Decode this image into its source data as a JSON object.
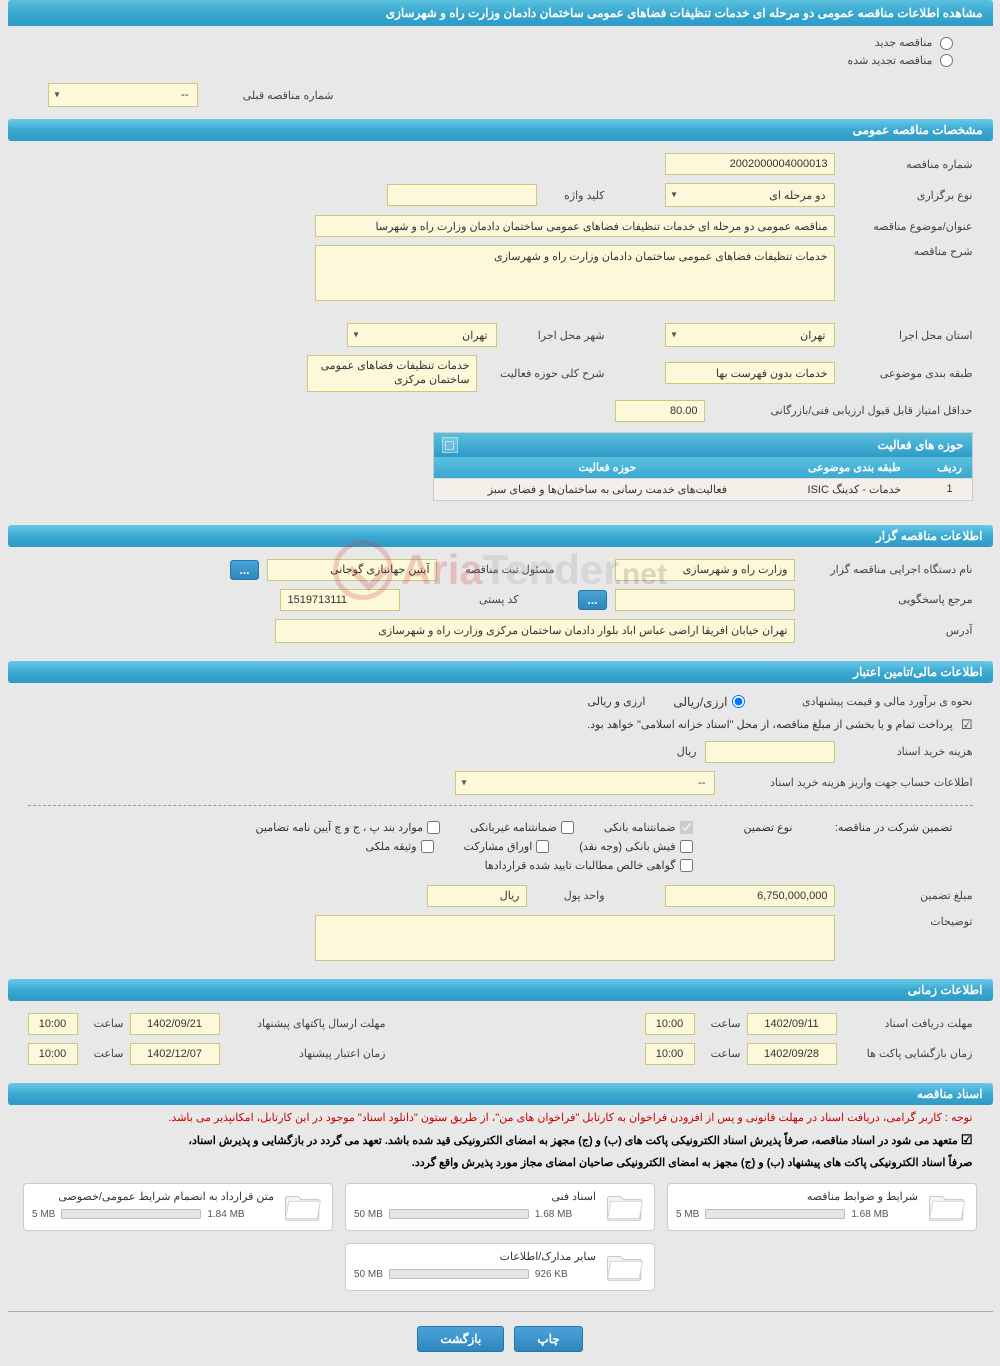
{
  "watermark": {
    "part1": "Aria",
    "part2": "Tender",
    "part3": ".net"
  },
  "page_title": "مشاهده اطلاعات مناقصه عمومی دو مرحله ای خدمات تنظیفات فضاهای عمومی ساختمان دادمان وزارت راه و شهرسازی",
  "radios": {
    "new_tender": "مناقصه جدید",
    "renewed_tender": "مناقصه تجدید شده"
  },
  "prev_number": {
    "label": "شماره مناقصه قبلی",
    "value": "--"
  },
  "sections": {
    "general": "مشخصات مناقصه عمومی",
    "organizer": "اطلاعات مناقصه گزار",
    "financial": "اطلاعات مالی/تامین اعتبار",
    "time": "اطلاعات زمانی",
    "docs": "اسناد مناقصه"
  },
  "general": {
    "tender_number": {
      "label": "شماره مناقصه",
      "value": "2002000004000013"
    },
    "hold_type": {
      "label": "نوع برگزاری",
      "value": "دو مرحله ای"
    },
    "keyword": {
      "label": "کلید واژه",
      "value": ""
    },
    "subject": {
      "label": "عنوان/موضوع مناقصه",
      "value": "مناقصه عمومی دو مرحله ای خدمات تنظیفات فضاهای عمومی ساختمان دادمان  وزارت راه و شهرسا"
    },
    "description": {
      "label": "شرح مناقصه",
      "value": "خدمات تنظیفات فضاهای عمومی ساختمان دادمان  وزارت راه و شهرسازی"
    },
    "province": {
      "label": "استان محل اجرا",
      "value": "تهران"
    },
    "city": {
      "label": "شهر محل اجرا",
      "value": "تهران"
    },
    "subject_class": {
      "label": "طبقه بندی موضوعی",
      "value": "خدمات بدون فهرست بها"
    },
    "activity_summary": {
      "label": "شرح کلی حوزه فعالیت",
      "value": "خدمات تنظیفات فضاهای عمومی ساختمان مرکزی"
    },
    "min_score": {
      "label": "حداقل امتیاز قابل قبول ارزیابی فنی/بازرگانی",
      "value": "80.00"
    }
  },
  "activity_table": {
    "title": "حوزه های فعالیت",
    "columns": {
      "idx": "ردیف",
      "class": "طبقه بندی موضوعی",
      "field": "حوزه فعالیت"
    },
    "rows": [
      {
        "idx": "1",
        "class": "خدمات - کدینگ ISIC",
        "field": "فعالیت‌های خدمت رسانی به ساختمان‌ها و فضای سبز"
      }
    ]
  },
  "organizer": {
    "org_name": {
      "label": "نام دستگاه اجرایی مناقصه گزار",
      "value": "وزارت راه و شهرسازی"
    },
    "registrar": {
      "label": "مسئول ثبت مناقصه",
      "value": "آیتین جهانبازی گوجانی"
    },
    "responder": {
      "label": "مرجع پاسخگویی",
      "value": ""
    },
    "postal": {
      "label": "کد پستی",
      "value": "1519713111"
    },
    "address": {
      "label": "آدرس",
      "value": "تهران خیابان افریقا اراضی عباس اباد بلوار دادمان  ساختمان مرکزی وزارت راه و شهرسازی"
    }
  },
  "financial": {
    "estimate_type": {
      "label": "نحوه ی برآورد مالی و قیمت پیشنهادی",
      "option": "ارزی/ریالی",
      "option_label": "ارزی و ریالی"
    },
    "treasury_note": "پرداخت تمام و یا بخشی از مبلغ مناقصه، از محل \"اسناد خزانه اسلامی\" خواهد بود.",
    "purchase_cost": {
      "label": "هزینه خرید اسناد",
      "value": "",
      "unit": "ریال"
    },
    "account_info": {
      "label": "اطلاعات حساب جهت واریز هزینه خرید اسناد",
      "value": "--"
    },
    "guarantee_label": "تضمین شرکت در مناقصه:",
    "guarantee_type_label": "نوع تضمین",
    "guarantees": {
      "bank": "ضمانتنامه بانکی",
      "nonbank": "ضمانتنامه غیربانکی",
      "clauses": "موارد بند پ ، ج و چ آیین نامه تضامین",
      "cash": "فیش بانکی (وجه نقد)",
      "bonds": "اوراق مشارکت",
      "property": "وثیقه ملکی",
      "cert": "گواهی خالص مطالبات تایید شده قراردادها"
    },
    "guarantee_amount": {
      "label": "مبلغ تضمین",
      "value": "6,750,000,000",
      "unit_label": "واحد پول",
      "unit": "ریال"
    },
    "explanation": {
      "label": "توضیحات",
      "value": ""
    }
  },
  "time": {
    "doc_receive": {
      "label": "مهلت دریافت اسناد",
      "date": "1402/09/11",
      "hour_label": "ساعت",
      "hour": "10:00"
    },
    "bid_send": {
      "label": "مهلت ارسال پاکتهای پیشنهاد",
      "date": "1402/09/21",
      "hour_label": "ساعت",
      "hour": "10:00"
    },
    "open": {
      "label": "زمان بازگشایی پاکت ها",
      "date": "1402/09/28",
      "hour_label": "ساعت",
      "hour": "10:00"
    },
    "validity": {
      "label": "زمان اعتبار پیشنهاد",
      "date": "1402/12/07",
      "hour_label": "ساعت",
      "hour": "10:00"
    }
  },
  "notes": {
    "red": "توجه : کاربر گرامی، دریافت اسناد در مهلت قانونی و پس از افزودن فراخوان به کارتابل \"فراخوان های من\"، از طریق ستون \"دانلود اسناد\" موجود در این کارتابل، امکانپذیر می باشد.",
    "black1": "متعهد می شود در اسناد مناقصه، صرفاً پذیرش اسناد الکترونیکی پاکت های (ب) و (ج) مجهز به امضای الکترونیکی قید شده باشد. تعهد می گردد در بازگشایی و پذیرش اسناد،",
    "black2": "صرفاً اسناد الکترونیکی پاکت های پیشنهاد (ب) و (ج) مجهز به امضای الکترونیکی صاحبان امضای مجاز مورد پذیرش واقع گردد.",
    "committed_label": "☑"
  },
  "docs": [
    {
      "title": "شرایط و ضوابط مناقصه",
      "size": "1.68 MB",
      "total": "5 MB",
      "fill": 34
    },
    {
      "title": "اسناد فنی",
      "size": "1.68 MB",
      "total": "50 MB",
      "fill": 4
    },
    {
      "title": "متن قرارداد به انضمام شرایط عمومی/خصوصی",
      "size": "1.84 MB",
      "total": "5 MB",
      "fill": 37
    },
    {
      "title": "سایر مدارک/اطلاعات",
      "size": "926 KB",
      "total": "50 MB",
      "fill": 2
    }
  ],
  "footer": {
    "print": "چاپ",
    "back": "بازگشت"
  },
  "ellipsis": "...",
  "expand_symbol": "□"
}
